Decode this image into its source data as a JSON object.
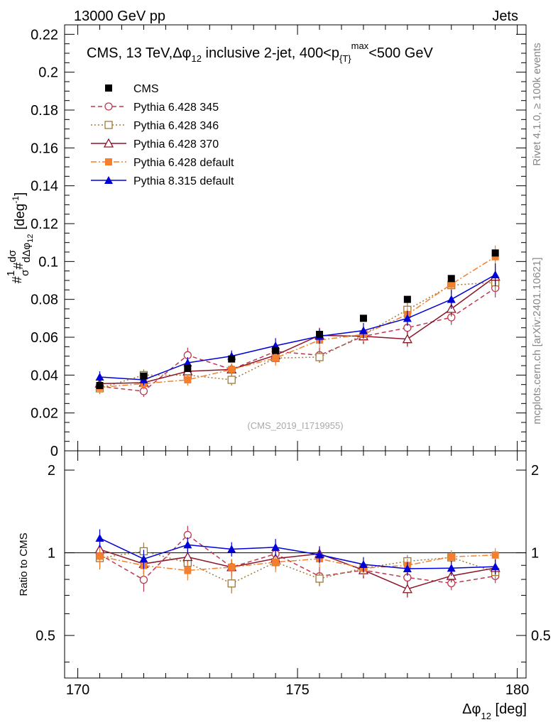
{
  "header": {
    "left": "13000 GeV pp",
    "right": "Jets"
  },
  "side_labels": {
    "rivet": "Rivet 4.1.0, ≥ 100k events",
    "mcplots": "mcplots.cern.ch [arXiv:2401.10621]"
  },
  "watermark": "(CMS_2019_I1719955)",
  "chart_data": {
    "type": "scatter",
    "title": "CMS, 13 TeV, Δφ12 inclusive 2-jet, 400<pT max<500 GeV",
    "title_parts": {
      "pre": "CMS, 13 TeV,",
      "phi": "Δφ",
      "phi_sub": "12",
      "mid": " inclusive 2-jet, 400<p",
      "pt_sub": "{T}",
      "pt_sup": "max",
      "post": "<500 GeV"
    },
    "xlabel": "Δφ12 [deg]",
    "xlabel_parts": {
      "main": "Δφ",
      "sub": "12",
      "unit": " [deg]"
    },
    "ylabel": "#1/σ #dσ/dΔφ12 [deg-1]",
    "ylabel_parts": {
      "hash1": "#",
      "one": "1",
      "sigma": "σ",
      "hash2": "#",
      "dsig": "dσ",
      "dphi": "dΔφ",
      "dphi_sub": "12",
      "unit_pre": "[deg",
      "unit_sup": "-1",
      "unit_post": "]"
    },
    "ratio_ylabel": "Ratio to CMS",
    "xlim": [
      169.7,
      180.2
    ],
    "ylim": [
      0,
      0.225
    ],
    "ratio_ylim": [
      0.35,
      2.35
    ],
    "x_ticks": [
      170,
      175,
      180
    ],
    "x_tick_labels": [
      "170",
      "175",
      "180"
    ],
    "y_ticks": [
      0,
      0.02,
      0.04,
      0.06,
      0.08,
      0.1,
      0.12,
      0.14,
      0.16,
      0.18,
      0.2,
      0.22
    ],
    "y_tick_labels": [
      "0",
      "0.02",
      "0.04",
      "0.06",
      "0.08",
      "0.1",
      "0.12",
      "0.14",
      "0.16",
      "0.18",
      "0.2",
      "0.22"
    ],
    "ratio_ticks": [
      0.5,
      1,
      2
    ],
    "ratio_tick_labels": [
      "0.5",
      "1",
      "2"
    ],
    "x": [
      170.5,
      171.5,
      172.5,
      173.5,
      174.5,
      175.5,
      176.5,
      177.5,
      178.5,
      179.5
    ],
    "series": [
      {
        "name": "CMS",
        "color": "#000000",
        "marker": "square-filled",
        "line": "none",
        "values": [
          0.0345,
          0.0395,
          0.0435,
          0.0485,
          0.053,
          0.0615,
          0.07,
          0.08,
          0.091,
          0.1045
        ],
        "errors": [
          0.001,
          0.001,
          0.001,
          0.001,
          0.001,
          0.001,
          0.001,
          0.001,
          0.001,
          0.001
        ]
      },
      {
        "name": "Pythia 6.428 345",
        "color": "#c0364e",
        "marker": "circle-open",
        "line": "dashed",
        "values": [
          0.034,
          0.0315,
          0.0505,
          0.043,
          0.0525,
          0.0505,
          0.0605,
          0.065,
          0.0705,
          0.086
        ],
        "errors": [
          0.003,
          0.003,
          0.004,
          0.003,
          0.004,
          0.004,
          0.004,
          0.004,
          0.004,
          0.005
        ]
      },
      {
        "name": "Pythia 6.428 346",
        "color": "#a07838",
        "marker": "square-open",
        "line": "dotted",
        "values": [
          0.033,
          0.04,
          0.04,
          0.0375,
          0.049,
          0.0495,
          0.0615,
          0.0745,
          0.0875,
          0.089
        ],
        "errors": [
          0.003,
          0.003,
          0.003,
          0.003,
          0.003,
          0.003,
          0.003,
          0.004,
          0.004,
          0.005
        ]
      },
      {
        "name": "Pythia 6.428 370",
        "color": "#8b1426",
        "marker": "triangle-open",
        "line": "solid",
        "values": [
          0.0355,
          0.036,
          0.042,
          0.043,
          0.0505,
          0.061,
          0.0605,
          0.059,
          0.075,
          0.092
        ],
        "errors": [
          0.003,
          0.003,
          0.003,
          0.003,
          0.004,
          0.004,
          0.004,
          0.004,
          0.004,
          0.005
        ]
      },
      {
        "name": "Pythia 6.428 default",
        "color": "#f37f2f",
        "marker": "square-filled",
        "line": "dashdot",
        "values": [
          0.0335,
          0.0355,
          0.0375,
          0.043,
          0.049,
          0.0585,
          0.0615,
          0.072,
          0.088,
          0.1025
        ],
        "errors": [
          0.003,
          0.003,
          0.003,
          0.003,
          0.004,
          0.004,
          0.004,
          0.004,
          0.005,
          0.006
        ]
      },
      {
        "name": "Pythia 8.315 default",
        "color": "#0000d8",
        "marker": "triangle-filled",
        "line": "solid",
        "values": [
          0.039,
          0.0375,
          0.0465,
          0.05,
          0.0555,
          0.0605,
          0.0635,
          0.07,
          0.08,
          0.093
        ],
        "errors": [
          0.003,
          0.003,
          0.003,
          0.003,
          0.004,
          0.004,
          0.004,
          0.004,
          0.005,
          0.006
        ]
      }
    ]
  }
}
